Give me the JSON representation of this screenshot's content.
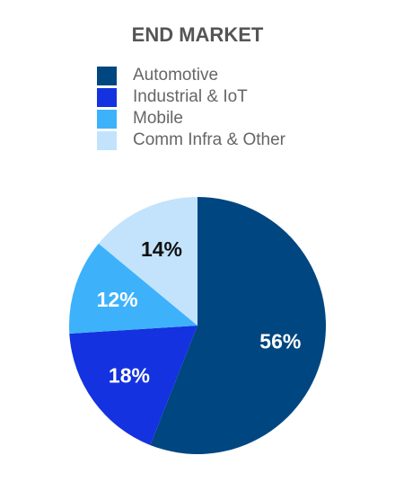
{
  "chart_data": {
    "type": "pie",
    "title": "END MARKET",
    "legend_position": "top",
    "slices": [
      {
        "name": "Automotive",
        "value": 56,
        "label": "56%",
        "color": "#004680",
        "label_color": "#ffffff"
      },
      {
        "name": "Industrial & IoT",
        "value": 18,
        "label": "18%",
        "color": "#1432E0",
        "label_color": "#ffffff"
      },
      {
        "name": "Mobile",
        "value": 12,
        "label": "12%",
        "color": "#3EB1FB",
        "label_color": "#ffffff"
      },
      {
        "name": "Comm Infra & Other",
        "value": 14,
        "label": "14%",
        "color": "#C2E3FB",
        "label_color": "#111111"
      }
    ]
  }
}
